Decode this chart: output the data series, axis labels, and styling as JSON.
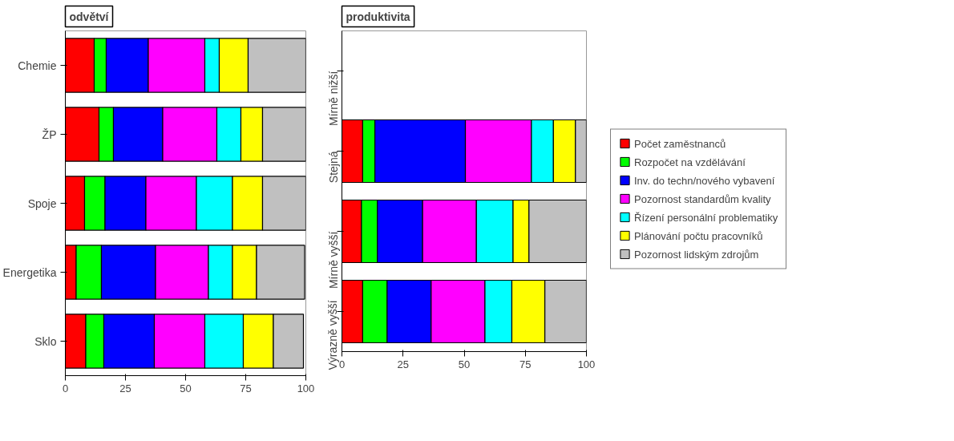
{
  "chart_data": [
    {
      "type": "bar",
      "orientation": "horizontal",
      "stacked": true,
      "title": "odvětví",
      "categories": [
        "Chemie",
        "ŽP",
        "Spoje",
        "Energetika",
        "Sklo"
      ],
      "xlim": [
        0,
        100
      ],
      "xticks": [
        0,
        25,
        50,
        75,
        100
      ],
      "grid": false,
      "legend": false,
      "series": [
        {
          "color": "#ff0000",
          "values": [
            12,
            14,
            8,
            4.5,
            8.5
          ]
        },
        {
          "color": "#00ff00",
          "values": [
            5,
            6,
            8.5,
            10.5,
            7.5
          ]
        },
        {
          "color": "#0000ff",
          "values": [
            17.5,
            20.5,
            17,
            22.5,
            21
          ]
        },
        {
          "color": "#ff00ff",
          "values": [
            23.5,
            22.5,
            21,
            22,
            21
          ]
        },
        {
          "color": "#00ffff",
          "values": [
            6,
            10,
            15,
            10,
            16
          ]
        },
        {
          "color": "#ffff00",
          "values": [
            12,
            9,
            12.5,
            10,
            12.5
          ]
        },
        {
          "color": "#c0c0c0",
          "values": [
            24,
            18,
            18,
            20,
            12.5
          ]
        }
      ]
    },
    {
      "type": "bar",
      "orientation": "horizontal",
      "stacked": true,
      "title": "produktivita",
      "categories": [
        "Mírně nižší",
        "Stejná",
        "Mírně vyšší",
        "Výrazně vyšší"
      ],
      "xlim": [
        0,
        100
      ],
      "xticks": [
        0,
        25,
        50,
        75,
        100
      ],
      "grid": false,
      "legend": "right",
      "series": [
        {
          "name": "Počet zaměstnanců",
          "color": "#ff0000",
          "values": [
            null,
            8.5,
            8,
            8.5
          ]
        },
        {
          "name": "Rozpočet na vzdělávání",
          "color": "#00ff00",
          "values": [
            null,
            5,
            6.5,
            10
          ]
        },
        {
          "name": "Inv. do techn/nového vybavení",
          "color": "#0000ff",
          "values": [
            null,
            37,
            18.5,
            18
          ]
        },
        {
          "name": "Pozornost standardům kvality",
          "color": "#ff00ff",
          "values": [
            null,
            27,
            22,
            22
          ]
        },
        {
          "name": "Řízení personální problematiky",
          "color": "#00ffff",
          "values": [
            null,
            9,
            15,
            11
          ]
        },
        {
          "name": "Plánování počtu pracovníků",
          "color": "#ffff00",
          "values": [
            null,
            9,
            6.5,
            13.5
          ]
        },
        {
          "name": "Pozornost lidským zdrojům",
          "color": "#c0c0c0",
          "values": [
            null,
            4.5,
            23.5,
            17
          ]
        }
      ]
    }
  ]
}
